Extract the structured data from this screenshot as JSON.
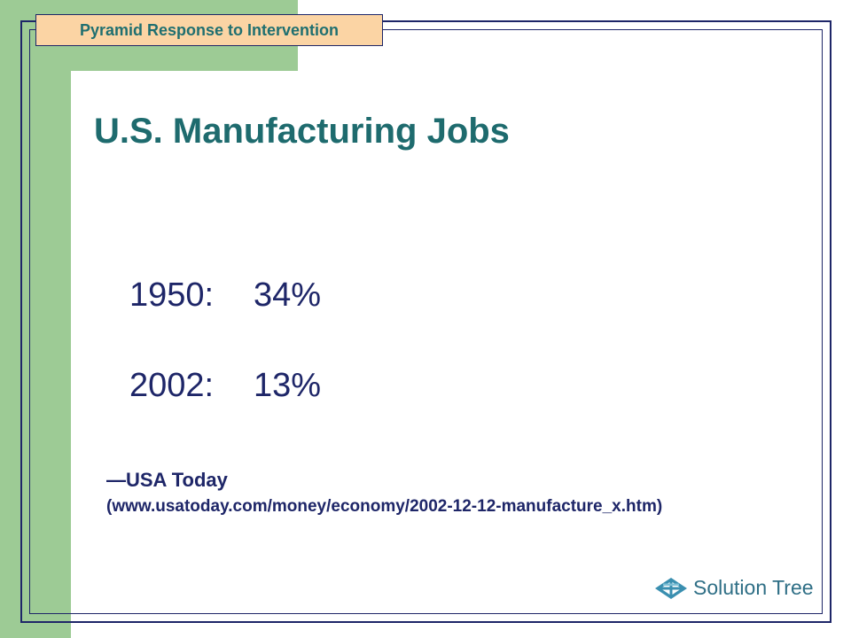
{
  "header": {
    "tab_label": "Pyramid Response to Intervention"
  },
  "slide": {
    "title": "U.S. Manufacturing Jobs",
    "stats": [
      {
        "year": "1950:",
        "value": "34%"
      },
      {
        "year": "2002:",
        "value": "13%"
      }
    ],
    "source_name": "—USA Today",
    "source_url": "(www.usatoday.com/money/economy/2002-12-12-manufacture_x.htm)"
  },
  "logo": {
    "text": "Solution Tree",
    "icon": "solution-tree-icon"
  },
  "colors": {
    "green_accent": "#9dcb95",
    "frame_navy": "#1e2668",
    "title_teal": "#1e6b6e",
    "tab_peach": "#fbd4a4",
    "logo_blue": "#2f6f86"
  }
}
